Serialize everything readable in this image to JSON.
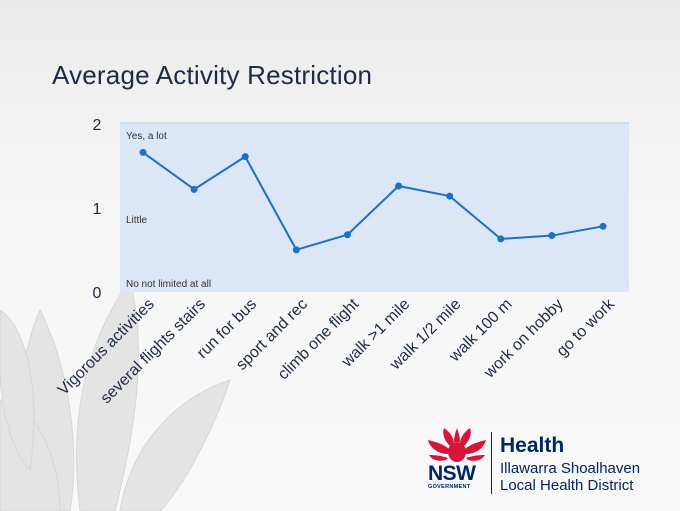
{
  "slide": {
    "title": "Average Activity Restriction"
  },
  "logo": {
    "nsw": "NSW",
    "government": "GOVERNMENT",
    "health": "Health",
    "district_line1": "Illawarra Shoalhaven",
    "district_line2": "Local Health District"
  },
  "colors": {
    "plot_background": "#dbe6f6",
    "line": "#1f6fc5",
    "title": "#1f2a44",
    "brand_navy": "#002664",
    "brand_red": "#d7153a"
  },
  "chart_data": {
    "type": "line",
    "title": "Average Activity Restriction",
    "categories": [
      "Vigorous activities",
      "several flights stairs",
      "run for bus",
      "sport and rec",
      "climb one flight",
      "walk >1 mile",
      "walk 1/2 mile",
      "walk 100 m",
      "work on hobby",
      "go to work"
    ],
    "series": [
      {
        "values": [
          1.65,
          1.21,
          1.6,
          0.49,
          0.67,
          1.25,
          1.13,
          0.62,
          0.66,
          0.77
        ]
      }
    ],
    "ylim": [
      0,
      2
    ],
    "yticks": [
      "0",
      "1",
      "2"
    ],
    "annotations": [
      "Yes, a lot",
      "Little",
      "No not limited at all"
    ],
    "grid": false,
    "legend": "none"
  }
}
